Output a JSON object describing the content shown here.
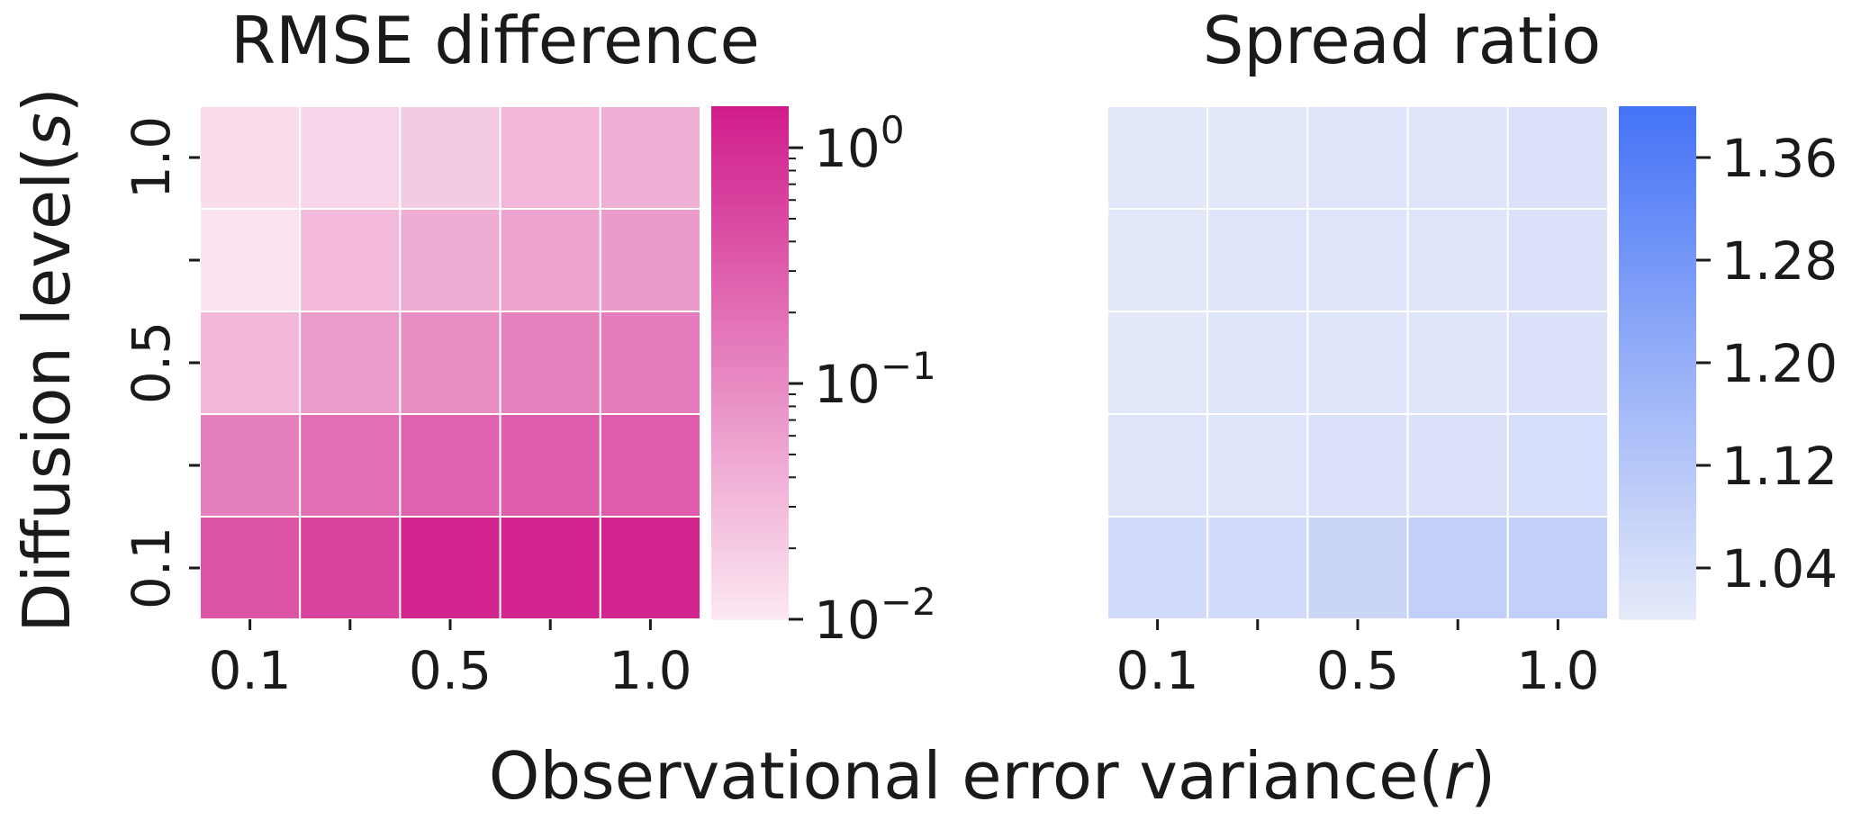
{
  "xlabel": "Observational error variance",
  "xlabel_symbol": "r",
  "ylabel": "Diffusion level",
  "ylabel_symbol": "s",
  "chart_data": [
    {
      "type": "heatmap",
      "title": "RMSE difference",
      "x_ticks": [
        "0.1",
        "0.5",
        "1.0"
      ],
      "y_ticks": [
        "1.0",
        "0.5",
        "0.1"
      ],
      "values": [
        [
          0.013,
          0.016,
          0.021,
          0.033,
          0.04
        ],
        [
          0.011,
          0.032,
          0.043,
          0.055,
          0.066
        ],
        [
          0.033,
          0.065,
          0.095,
          0.12,
          0.14
        ],
        [
          0.13,
          0.2,
          0.27,
          0.3,
          0.31
        ],
        [
          0.37,
          0.61,
          1.2,
          1.2,
          1.2
        ]
      ],
      "colorscale": {
        "type": "log",
        "min": 0.01,
        "max": 1.5,
        "low_color": "#fce8f2",
        "high_color": "#d01c8b"
      },
      "colorbar_ticks": [
        {
          "value": 1,
          "base": "10",
          "exp": "0"
        },
        {
          "value": 0.1,
          "base": "10",
          "exp": "−1"
        },
        {
          "value": 0.01,
          "base": "10",
          "exp": "−2"
        }
      ],
      "minor_ticks": [
        0.02,
        0.03,
        0.04,
        0.05,
        0.06,
        0.07,
        0.08,
        0.09,
        0.2,
        0.3,
        0.4,
        0.5,
        0.6,
        0.7,
        0.8,
        0.9
      ]
    },
    {
      "type": "heatmap",
      "title": "Spread ratio",
      "x_ticks": [
        "0.1",
        "0.5",
        "1.0"
      ],
      "values": [
        [
          1.01,
          1.01,
          1.02,
          1.02,
          1.03
        ],
        [
          1.01,
          1.02,
          1.02,
          1.02,
          1.03
        ],
        [
          1.01,
          1.02,
          1.02,
          1.02,
          1.03
        ],
        [
          1.02,
          1.02,
          1.03,
          1.03,
          1.04
        ],
        [
          1.05,
          1.05,
          1.07,
          1.09,
          1.09
        ]
      ],
      "colorscale": {
        "type": "linear",
        "min": 1.0,
        "max": 1.4,
        "low_color": "#e6eaf9",
        "high_color": "#4472f6"
      },
      "colorbar_ticks": [
        {
          "value": 1.36,
          "label": "1.36"
        },
        {
          "value": 1.28,
          "label": "1.28"
        },
        {
          "value": 1.2,
          "label": "1.20"
        },
        {
          "value": 1.12,
          "label": "1.12"
        },
        {
          "value": 1.04,
          "label": "1.04"
        }
      ]
    }
  ]
}
